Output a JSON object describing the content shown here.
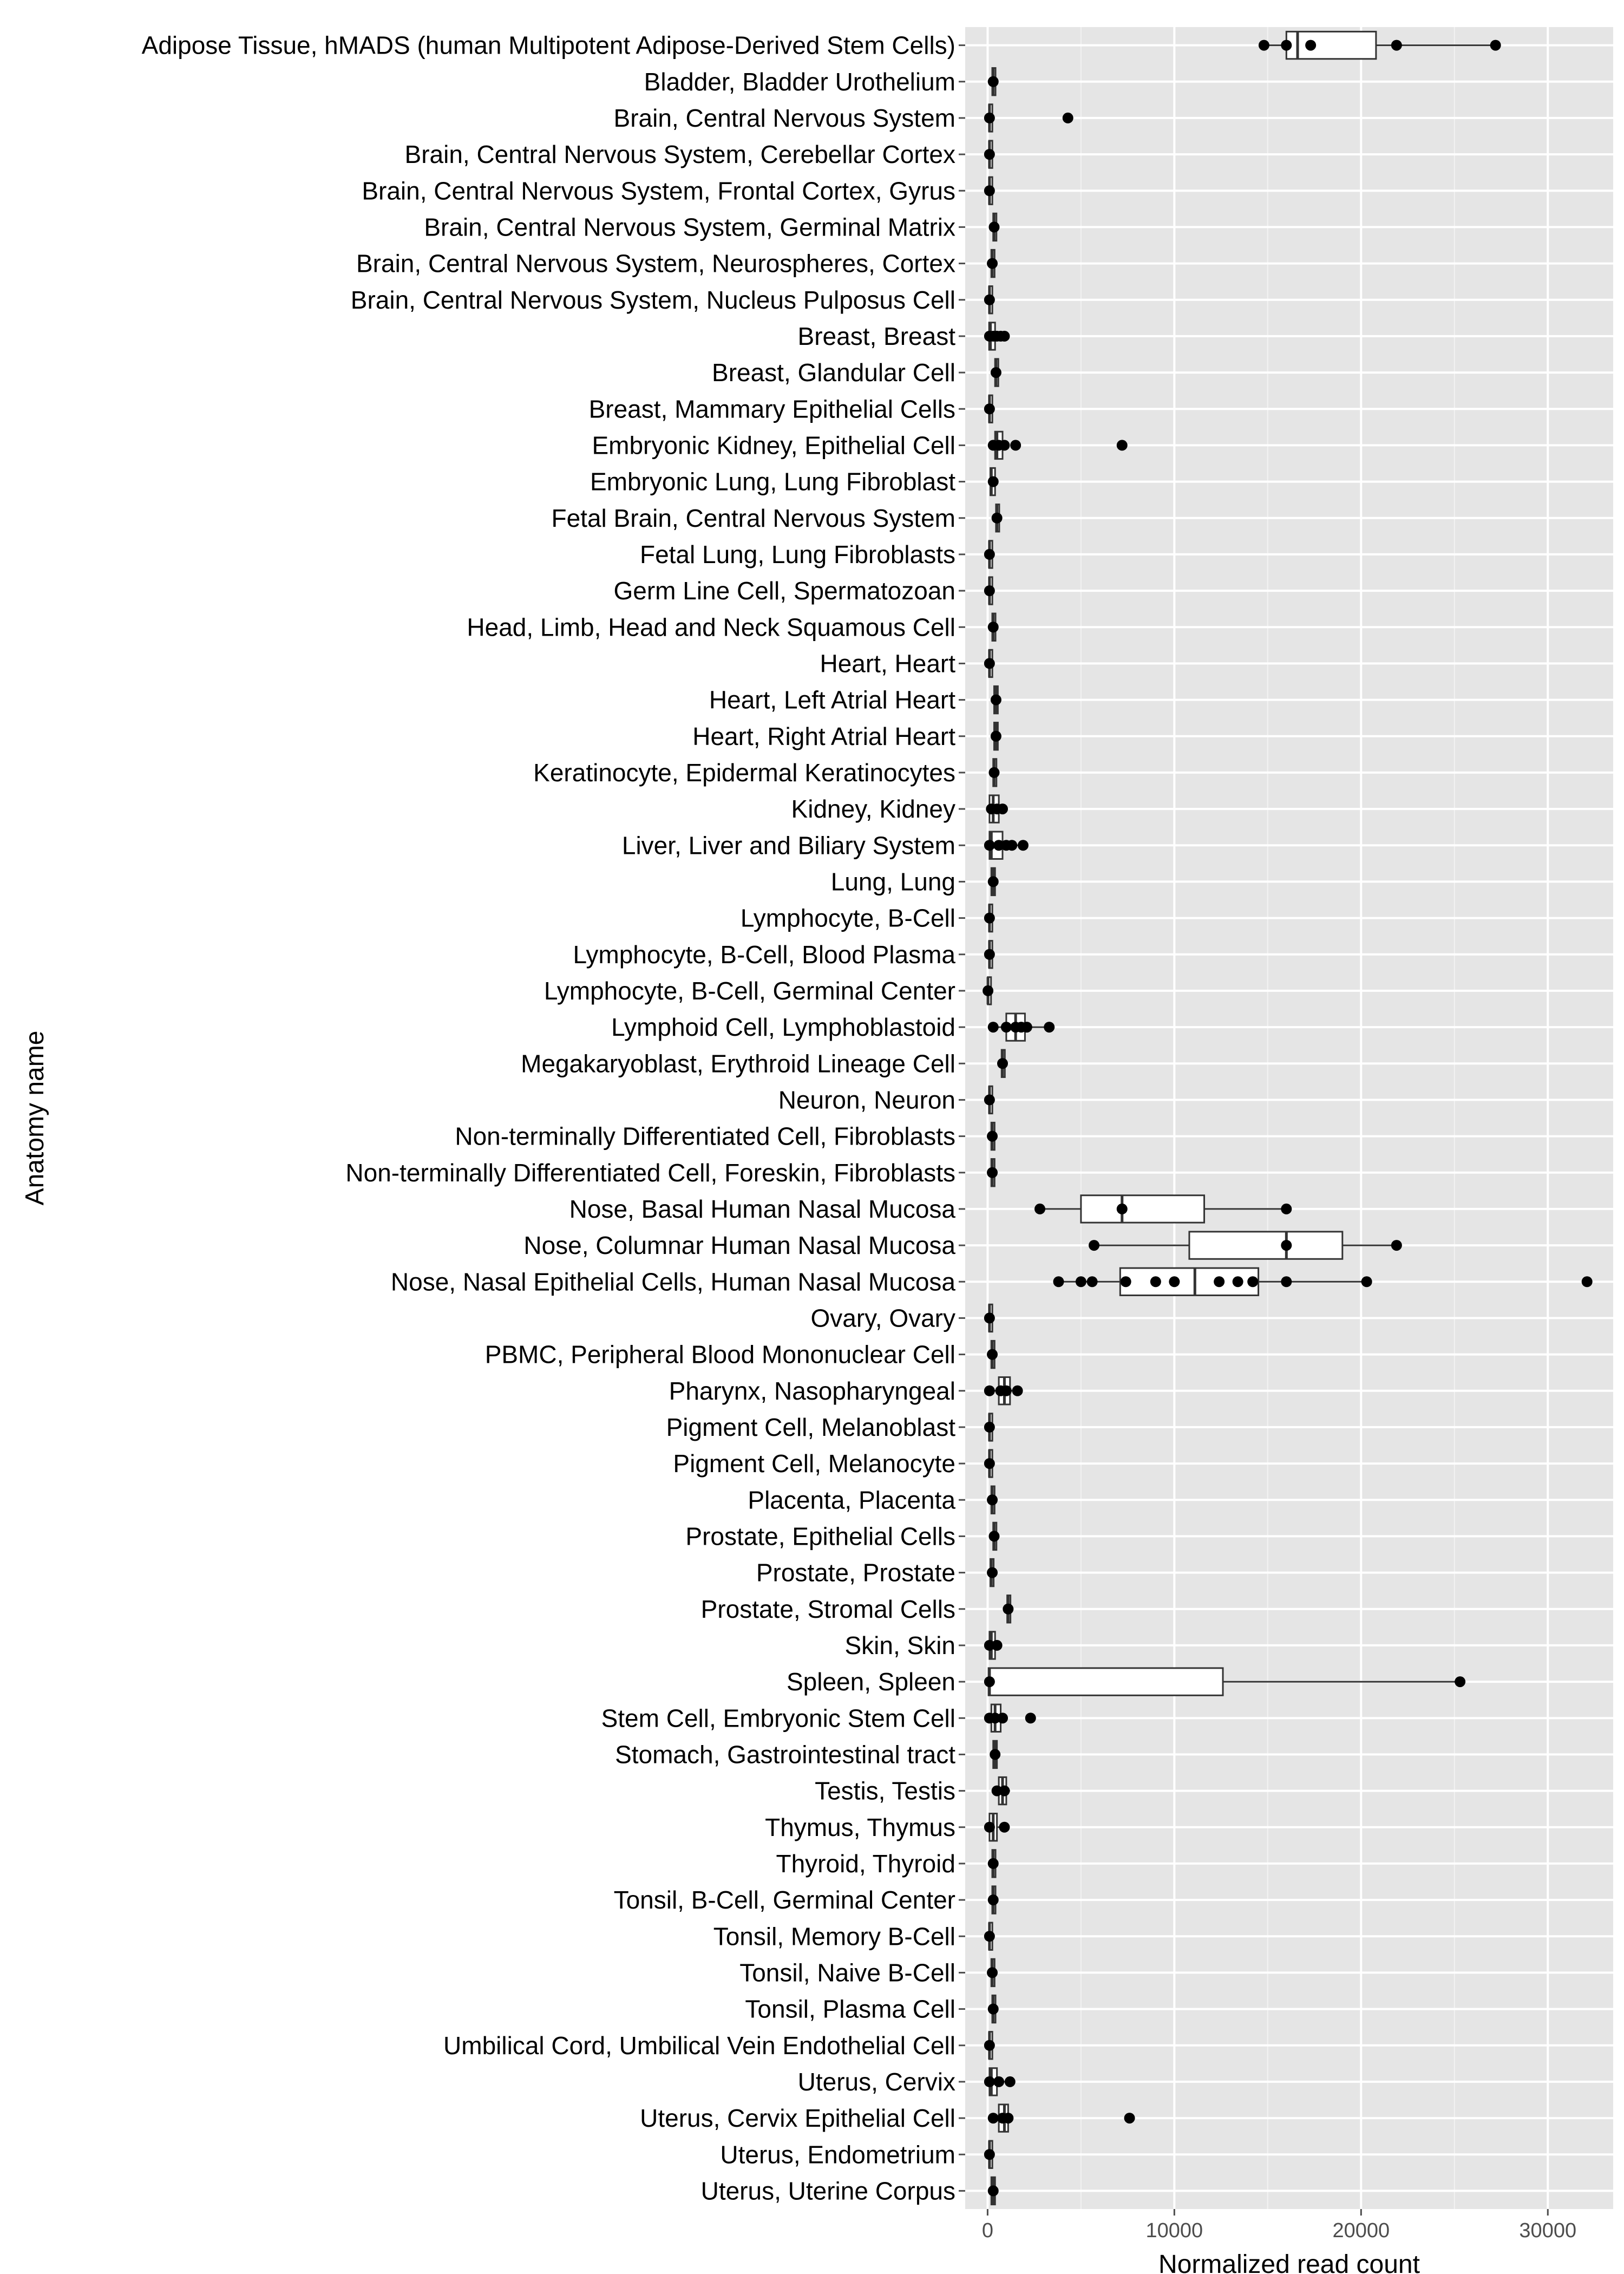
{
  "chart_data": {
    "type": "boxplot",
    "orientation": "horizontal",
    "xlabel": "Normalized read count",
    "ylabel": "Anatomy name",
    "xlim": [
      -1200,
      33500
    ],
    "x_ticks": [
      0,
      10000,
      20000,
      30000
    ],
    "x_tick_labels": [
      "0",
      "10000",
      "20000",
      "30000"
    ],
    "grid": true,
    "background": "#e5e5e5",
    "gridline_color": "#ffffff",
    "box_fill": "#ffffff",
    "point_color": "#000000",
    "categories": [
      {
        "name": "Adipose Tissue, hMADS (human Multipotent Adipose-Derived Stem Cells)",
        "box": [
          14800,
          16000,
          16600,
          20800,
          27200
        ],
        "points": [
          14800,
          16000,
          17300,
          21900,
          27200
        ]
      },
      {
        "name": "Bladder, Bladder Urothelium",
        "box": [
          200,
          250,
          300,
          350,
          400
        ],
        "points": [
          300
        ]
      },
      {
        "name": "Brain, Central Nervous System",
        "box": [
          50,
          80,
          100,
          150,
          250
        ],
        "points": [
          100,
          4300
        ]
      },
      {
        "name": "Brain, Central Nervous System, Cerebellar Cortex",
        "box": [
          50,
          80,
          100,
          120,
          150
        ],
        "points": [
          100
        ]
      },
      {
        "name": "Brain, Central Nervous System, Frontal Cortex, Gyrus",
        "box": [
          50,
          80,
          100,
          120,
          150
        ],
        "points": [
          100
        ]
      },
      {
        "name": "Brain, Central Nervous System, Germinal Matrix",
        "box": [
          250,
          300,
          350,
          400,
          450
        ],
        "points": [
          350
        ]
      },
      {
        "name": "Brain, Central Nervous System, Neurospheres, Cortex",
        "box": [
          150,
          200,
          250,
          300,
          350
        ],
        "points": [
          250
        ]
      },
      {
        "name": "Brain, Central Nervous System, Nucleus Pulposus Cell",
        "box": [
          50,
          80,
          100,
          120,
          150
        ],
        "points": [
          100
        ]
      },
      {
        "name": "Breast, Breast",
        "box": [
          0,
          80,
          150,
          400,
          1000
        ],
        "points": [
          100,
          300,
          500,
          700,
          900
        ]
      },
      {
        "name": "Breast, Glandular Cell",
        "box": [
          300,
          400,
          450,
          550,
          600
        ],
        "points": [
          450
        ]
      },
      {
        "name": "Breast, Mammary Epithelial Cells",
        "box": [
          50,
          80,
          100,
          120,
          150
        ],
        "points": [
          100
        ]
      },
      {
        "name": "Embryonic Kidney,  Epithelial Cell",
        "box": [
          200,
          400,
          500,
          800,
          1000
        ],
        "points": [
          300,
          600,
          900,
          1500,
          7200
        ]
      },
      {
        "name": "Embryonic Lung, Lung Fibroblast",
        "box": [
          100,
          150,
          200,
          400,
          500
        ],
        "points": [
          300
        ]
      },
      {
        "name": "Fetal Brain, Central Nervous System",
        "box": [
          400,
          450,
          500,
          550,
          600
        ],
        "points": [
          500
        ]
      },
      {
        "name": "Fetal Lung, Lung Fibroblasts",
        "box": [
          50,
          80,
          100,
          120,
          150
        ],
        "points": [
          100
        ]
      },
      {
        "name": "Germ Line Cell, Spermatozoan",
        "box": [
          50,
          80,
          100,
          120,
          150
        ],
        "points": [
          100
        ]
      },
      {
        "name": "Head, Limb, Head and Neck Squamous Cell",
        "box": [
          200,
          250,
          300,
          350,
          400
        ],
        "points": [
          300
        ]
      },
      {
        "name": "Heart, Heart",
        "box": [
          50,
          80,
          100,
          120,
          150
        ],
        "points": [
          100
        ]
      },
      {
        "name": "Heart, Left Atrial Heart",
        "box": [
          300,
          350,
          450,
          550,
          600
        ],
        "points": [
          450
        ]
      },
      {
        "name": "Heart, Right Atrial Heart",
        "box": [
          300,
          350,
          450,
          550,
          600
        ],
        "points": [
          450
        ]
      },
      {
        "name": "Keratinocyte, Epidermal Keratinocytes",
        "box": [
          250,
          300,
          350,
          400,
          450
        ],
        "points": [
          350
        ]
      },
      {
        "name": "Kidney, Kidney",
        "box": [
          0,
          100,
          300,
          600,
          1000
        ],
        "points": [
          200,
          500,
          800
        ]
      },
      {
        "name": "Liver, Liver and Biliary System",
        "box": [
          0,
          100,
          200,
          800,
          1900
        ],
        "points": [
          100,
          600,
          1000,
          1300,
          1900
        ]
      },
      {
        "name": "Lung, Lung",
        "box": [
          100,
          200,
          300,
          400,
          500
        ],
        "points": [
          300
        ]
      },
      {
        "name": "Lymphocyte, B-Cell",
        "box": [
          50,
          80,
          100,
          120,
          150
        ],
        "points": [
          100
        ]
      },
      {
        "name": "Lymphocyte, B-Cell, Blood Plasma",
        "box": [
          50,
          80,
          100,
          120,
          150
        ],
        "points": [
          100
        ]
      },
      {
        "name": "Lymphocyte, B-Cell, Germinal Center",
        "box": [
          0,
          10,
          20,
          30,
          50
        ],
        "points": [
          20
        ]
      },
      {
        "name": "Lymphoid Cell, Lymphoblastoid",
        "box": [
          200,
          1000,
          1500,
          2000,
          3300
        ],
        "points": [
          300,
          1000,
          1500,
          1800,
          2100,
          3300
        ]
      },
      {
        "name": "Megakaryoblast, Erythroid Lineage Cell",
        "box": [
          700,
          750,
          800,
          850,
          900
        ],
        "points": [
          800
        ]
      },
      {
        "name": "Neuron, Neuron",
        "box": [
          50,
          80,
          100,
          120,
          150
        ],
        "points": [
          100
        ]
      },
      {
        "name": "Non-terminally Differentiated Cell, Fibroblasts",
        "box": [
          150,
          200,
          250,
          300,
          350
        ],
        "points": [
          250
        ]
      },
      {
        "name": "Non-terminally Differentiated Cell, Foreskin, Fibroblasts",
        "box": [
          150,
          200,
          250,
          300,
          350
        ],
        "points": [
          250
        ]
      },
      {
        "name": "Nose, Basal Human Nasal Mucosa",
        "box": [
          2800,
          5000,
          7200,
          11600,
          16000
        ],
        "points": [
          2800,
          7200,
          16000
        ]
      },
      {
        "name": "Nose, Columnar Human Nasal Mucosa",
        "box": [
          5700,
          10800,
          16000,
          19000,
          21900
        ],
        "points": [
          5700,
          16000,
          21900
        ]
      },
      {
        "name": "Nose, Nasal Epithelial Cells, Human Nasal Mucosa",
        "box": [
          3800,
          7100,
          11100,
          14500,
          20300
        ],
        "points": [
          3800,
          5000,
          5600,
          7400,
          9000,
          10000,
          12400,
          13400,
          14200,
          16000,
          20300,
          32100
        ]
      },
      {
        "name": "Ovary, Ovary",
        "box": [
          50,
          80,
          100,
          120,
          150
        ],
        "points": [
          100
        ]
      },
      {
        "name": "PBMC, Peripheral Blood Mononuclear Cell ",
        "box": [
          150,
          200,
          250,
          300,
          350
        ],
        "points": [
          250
        ]
      },
      {
        "name": "Pharynx, Nasopharyngeal",
        "box": [
          100,
          600,
          900,
          1200,
          1600
        ],
        "points": [
          100,
          700,
          1000,
          1600
        ]
      },
      {
        "name": "Pigment Cell, Melanoblast",
        "box": [
          50,
          80,
          100,
          120,
          150
        ],
        "points": [
          100
        ]
      },
      {
        "name": "Pigment Cell, Melanocyte",
        "box": [
          50,
          80,
          100,
          120,
          150
        ],
        "points": [
          100
        ]
      },
      {
        "name": "Placenta, Placenta",
        "box": [
          150,
          200,
          250,
          300,
          350
        ],
        "points": [
          250
        ]
      },
      {
        "name": "Prostate, Epithelial Cells",
        "box": [
          250,
          300,
          350,
          400,
          450
        ],
        "points": [
          350
        ]
      },
      {
        "name": "Prostate, Prostate",
        "box": [
          100,
          150,
          200,
          300,
          400
        ],
        "points": [
          250
        ]
      },
      {
        "name": "Prostate, Stromal Cells",
        "box": [
          1000,
          1050,
          1100,
          1150,
          1200
        ],
        "points": [
          1100
        ]
      },
      {
        "name": "Skin, Skin",
        "box": [
          0,
          100,
          200,
          400,
          600
        ],
        "points": [
          100,
          500
        ]
      },
      {
        "name": "Spleen, Spleen",
        "box": [
          0,
          50,
          100,
          12600,
          25300
        ],
        "points": [
          100,
          25300
        ]
      },
      {
        "name": "Stem Cell, Embryonic Stem Cell",
        "box": [
          0,
          200,
          400,
          700,
          1000
        ],
        "points": [
          100,
          400,
          800,
          2300
        ]
      },
      {
        "name": "Stomach, Gastrointestinal tract",
        "box": [
          200,
          300,
          400,
          500,
          600
        ],
        "points": [
          400
        ]
      },
      {
        "name": "Testis, Testis",
        "box": [
          300,
          600,
          800,
          1000,
          1200
        ],
        "points": [
          500,
          900
        ]
      },
      {
        "name": "Thymus, Thymus",
        "box": [
          0,
          100,
          300,
          500,
          900
        ],
        "points": [
          100,
          900
        ]
      },
      {
        "name": "Thyroid, Thyroid",
        "box": [
          200,
          250,
          300,
          350,
          400
        ],
        "points": [
          300
        ]
      },
      {
        "name": "Tonsil, B-Cell, Germinal Center",
        "box": [
          200,
          250,
          300,
          350,
          400
        ],
        "points": [
          300
        ]
      },
      {
        "name": "Tonsil, Memory B-Cell",
        "box": [
          50,
          80,
          100,
          120,
          150
        ],
        "points": [
          100
        ]
      },
      {
        "name": "Tonsil, Naive B-Cell",
        "box": [
          150,
          200,
          250,
          300,
          350
        ],
        "points": [
          250
        ]
      },
      {
        "name": "Tonsil, Plasma Cell",
        "box": [
          200,
          250,
          300,
          350,
          400
        ],
        "points": [
          300
        ]
      },
      {
        "name": "Umbilical Cord, Umbilical Vein Endothelial Cell",
        "box": [
          50,
          80,
          100,
          120,
          150
        ],
        "points": [
          100
        ]
      },
      {
        "name": "Uterus, Cervix",
        "box": [
          0,
          100,
          200,
          500,
          1200
        ],
        "points": [
          100,
          600,
          1200
        ]
      },
      {
        "name": "Uterus, Cervix Epithelial Cell",
        "box": [
          300,
          600,
          900,
          1100,
          1300
        ],
        "points": [
          300,
          800,
          1100,
          7600
        ]
      },
      {
        "name": "Uterus, Endometrium",
        "box": [
          50,
          80,
          100,
          120,
          150
        ],
        "points": [
          100
        ]
      },
      {
        "name": "Uterus, Uterine Corpus",
        "box": [
          150,
          200,
          300,
          400,
          450
        ],
        "points": [
          300
        ]
      }
    ]
  }
}
